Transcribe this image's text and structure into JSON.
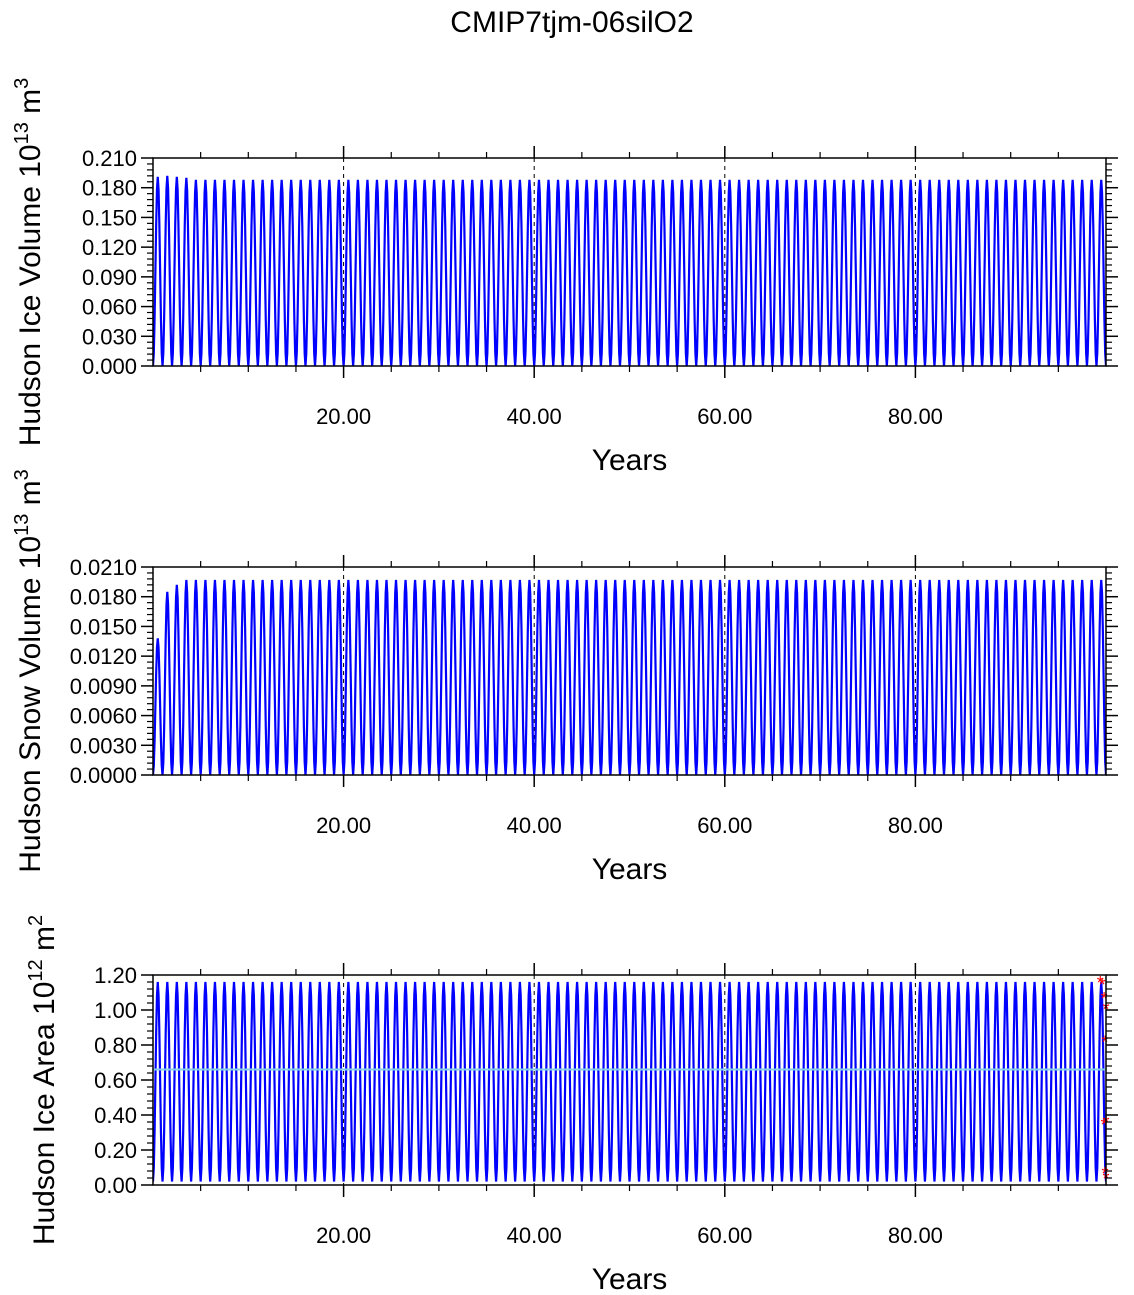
{
  "title": "CMIP7tjm-06silO2",
  "colors": {
    "series": "#0000ff",
    "mean": "#87ceeb",
    "markers": "#ff0000",
    "axes": "#000000",
    "grid": "#000000"
  },
  "chart_data": [
    {
      "type": "line",
      "title": "",
      "xlabel": "Years",
      "ylabel": "Hudson Ice Volume 10",
      "ylabel_exp": "13",
      "ylabel_unit": " m",
      "ylabel_unit_exp": "3",
      "xlim": [
        0,
        100
      ],
      "ylim": [
        0,
        0.21
      ],
      "x_ticks": [
        20,
        40,
        60,
        80
      ],
      "x_tick_labels": [
        "20.00",
        "40.00",
        "60.00",
        "80.00"
      ],
      "y_ticks": [
        0,
        0.03,
        0.06,
        0.09,
        0.12,
        0.15,
        0.18,
        0.21
      ],
      "y_tick_labels": [
        "0.000",
        "0.030",
        "0.060",
        "0.090",
        "0.120",
        "0.150",
        "0.180",
        "0.210"
      ],
      "grid": "vertical dashed at labeled x ticks",
      "series": [
        {
          "kind": "seasonal_cycle",
          "years": 100,
          "annual_max": 0.188,
          "annual_min": 0.0,
          "first_year_maxima": [
            0.191,
            0.192,
            0.191,
            0.19
          ]
        }
      ]
    },
    {
      "type": "line",
      "title": "",
      "xlabel": "Years",
      "ylabel": "Hudson Snow Volume 10",
      "ylabel_exp": "13",
      "ylabel_unit": " m",
      "ylabel_unit_exp": "3",
      "xlim": [
        0,
        100
      ],
      "ylim": [
        0,
        0.021
      ],
      "x_ticks": [
        20,
        40,
        60,
        80
      ],
      "x_tick_labels": [
        "20.00",
        "40.00",
        "60.00",
        "80.00"
      ],
      "y_ticks": [
        0,
        0.003,
        0.006,
        0.009,
        0.012,
        0.015,
        0.018,
        0.021
      ],
      "y_tick_labels": [
        "0.0000",
        "0.0030",
        "0.0060",
        "0.0090",
        "0.0120",
        "0.0150",
        "0.0180",
        "0.0210"
      ],
      "grid": "vertical dashed at labeled x ticks",
      "series": [
        {
          "kind": "seasonal_cycle",
          "years": 100,
          "annual_max": 0.0197,
          "annual_min": 0.0,
          "first_year_maxima": [
            0.0138,
            0.0185,
            0.0192,
            0.0197
          ]
        }
      ]
    },
    {
      "type": "line",
      "title": "",
      "xlabel": "Years",
      "ylabel": "Hudson Ice Area 10",
      "ylabel_exp": "12",
      "ylabel_unit": " m",
      "ylabel_unit_exp": "2",
      "xlim": [
        0,
        100
      ],
      "ylim": [
        0,
        1.2
      ],
      "x_ticks": [
        20,
        40,
        60,
        80
      ],
      "x_tick_labels": [
        "20.00",
        "40.00",
        "60.00",
        "80.00"
      ],
      "y_ticks": [
        0,
        0.2,
        0.4,
        0.6,
        0.8,
        1.0,
        1.2
      ],
      "y_tick_labels": [
        "0.00",
        "0.20",
        "0.40",
        "0.60",
        "0.80",
        "1.00",
        "1.20"
      ],
      "grid": "vertical dashed at labeled x ticks",
      "reference_line": {
        "y": 0.66,
        "color": "#87ceeb"
      },
      "observation_markers": [
        {
          "x": 99.4,
          "y": 1.16
        },
        {
          "x": 99.6,
          "y": 1.15
        },
        {
          "x": 99.8,
          "y": 1.07
        },
        {
          "x": 100,
          "y": 1.01
        },
        {
          "x": 99.9,
          "y": 0.82
        },
        {
          "x": 99.8,
          "y": 0.35
        },
        {
          "x": 100,
          "y": 0.36
        },
        {
          "x": 99.9,
          "y": 0.07
        },
        {
          "x": 100,
          "y": 0.04
        }
      ],
      "series": [
        {
          "kind": "seasonal_cycle",
          "years": 100,
          "annual_max": 1.16,
          "annual_min": 0.02,
          "first_year_maxima": [
            1.16
          ]
        }
      ]
    }
  ]
}
